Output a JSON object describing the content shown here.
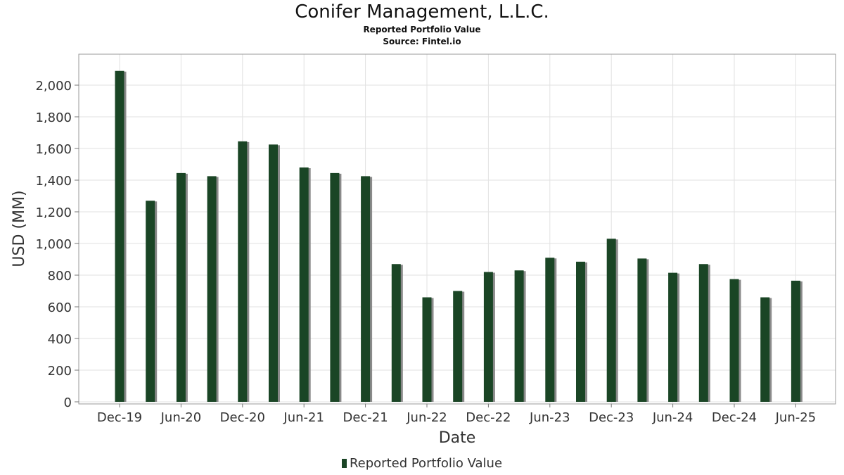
{
  "chart_data": {
    "type": "bar",
    "title": "Conifer Management, L.L.C.",
    "subtitle": "Reported Portfolio Value",
    "source": "Source: Fintel.io",
    "xlabel": "Date",
    "ylabel": "USD (MM)",
    "ylim": [
      0,
      2200
    ],
    "yticks": [
      "0",
      "200",
      "400",
      "600",
      "800",
      "1,000",
      "1,200",
      "1,400",
      "1,600",
      "1,800",
      "2,000"
    ],
    "xtick_labels": [
      "Dec-19",
      "Jun-20",
      "Dec-20",
      "Jun-21",
      "Dec-21",
      "Jun-22",
      "Dec-22",
      "Jun-23",
      "Dec-23",
      "Jun-24",
      "Dec-24",
      "Jun-25"
    ],
    "grid": true,
    "legend_position": "bottom-center",
    "categories": [
      "Dec-19",
      "Mar-20",
      "Jun-20",
      "Sep-20",
      "Dec-20",
      "Mar-21",
      "Jun-21",
      "Sep-21",
      "Dec-21",
      "Mar-22",
      "Jun-22",
      "Sep-22",
      "Dec-22",
      "Mar-23",
      "Jun-23",
      "Sep-23",
      "Dec-23",
      "Mar-24",
      "Jun-24",
      "Sep-24",
      "Dec-24",
      "Mar-25",
      "Jun-25"
    ],
    "series": [
      {
        "name": "Reported Portfolio Value",
        "color": "#1a4525",
        "values": [
          2090,
          1270,
          1445,
          1425,
          1645,
          1625,
          1480,
          1445,
          1425,
          870,
          660,
          700,
          820,
          830,
          910,
          885,
          1030,
          905,
          815,
          870,
          775,
          660,
          765
        ]
      }
    ]
  }
}
